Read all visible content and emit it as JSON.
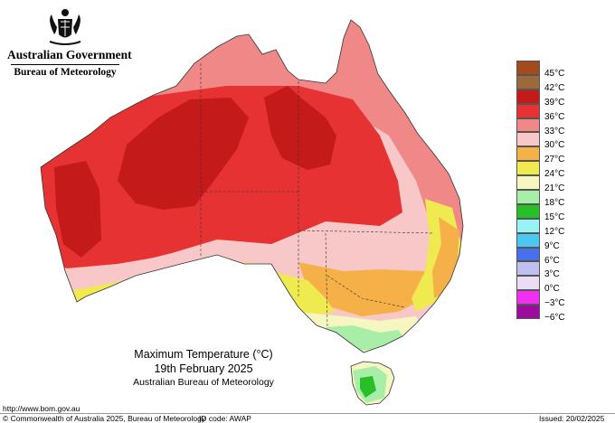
{
  "header": {
    "government": "Australian Government",
    "agency": "Bureau of Meteorology",
    "crest_icon": "coat-of-arms-icon"
  },
  "title": {
    "main": "Maximum Temperature (°C)",
    "date": "19th February 2025",
    "org": "Australian Bureau of Meteorology"
  },
  "legend": {
    "items": [
      {
        "label": "45°C",
        "color": "#a34a1e"
      },
      {
        "label": "42°C",
        "color": "#9c6a3a"
      },
      {
        "label": "39°C",
        "color": "#c41a1a"
      },
      {
        "label": "36°C",
        "color": "#e63232"
      },
      {
        "label": "33°C",
        "color": "#f08888"
      },
      {
        "label": "30°C",
        "color": "#f8c8c8"
      },
      {
        "label": "27°C",
        "color": "#f6b048"
      },
      {
        "label": "24°C",
        "color": "#eeea50"
      },
      {
        "label": "21°C",
        "color": "#f6f6c0"
      },
      {
        "label": "18°C",
        "color": "#a8eea8"
      },
      {
        "label": "15°C",
        "color": "#28c028"
      },
      {
        "label": "12°C",
        "color": "#98f4f4"
      },
      {
        "label": "9°C",
        "color": "#4cc8f0"
      },
      {
        "label": "6°C",
        "color": "#4870e8"
      },
      {
        "label": "3°C",
        "color": "#c0c0f0"
      },
      {
        "label": "0°C",
        "color": "#ecdcf4"
      },
      {
        "label": "−3°C",
        "color": "#f030f0"
      },
      {
        "label": "−6°C",
        "color": "#9c0c9c"
      }
    ]
  },
  "footer": {
    "url": "http://www.bom.gov.au",
    "copyright": "© Commonwealth of Australia 2025, Bureau of Meteorology",
    "id_code": "ID code: AWAP",
    "issued": "Issued: 20/02/2025"
  }
}
